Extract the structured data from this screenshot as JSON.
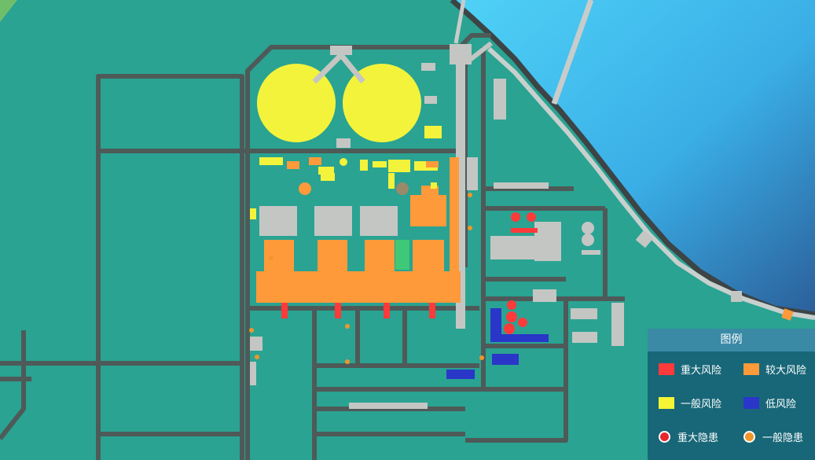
{
  "colors": {
    "ground": "#2aa392",
    "road": "#4e5a58",
    "building": "#c4c6c4",
    "sea_light": "#48c8f2",
    "sea_dark": "#2b6ea4",
    "risk_major": "#ff3a3a",
    "risk_large": "#ff9a3a",
    "risk_general": "#f5f536",
    "risk_low": "#2a36c8",
    "green_block": "#3ec878"
  },
  "legend": {
    "title": "图例",
    "items": [
      {
        "id": "major-risk",
        "label": "重大风险",
        "kind": "swatch",
        "color": "#ff3a3a"
      },
      {
        "id": "large-risk",
        "label": "较大风险",
        "kind": "swatch",
        "color": "#ff9a3a"
      },
      {
        "id": "general-risk",
        "label": "一般风险",
        "kind": "swatch",
        "color": "#f5f536"
      },
      {
        "id": "low-risk",
        "label": "低风险",
        "kind": "swatch",
        "color": "#2a36c8"
      },
      {
        "id": "major-hazard",
        "label": "重大隐患",
        "kind": "dot",
        "color": "#e8282c"
      },
      {
        "id": "general-hazard",
        "label": "一般隐患",
        "kind": "dot",
        "color": "#f0962a"
      }
    ]
  }
}
